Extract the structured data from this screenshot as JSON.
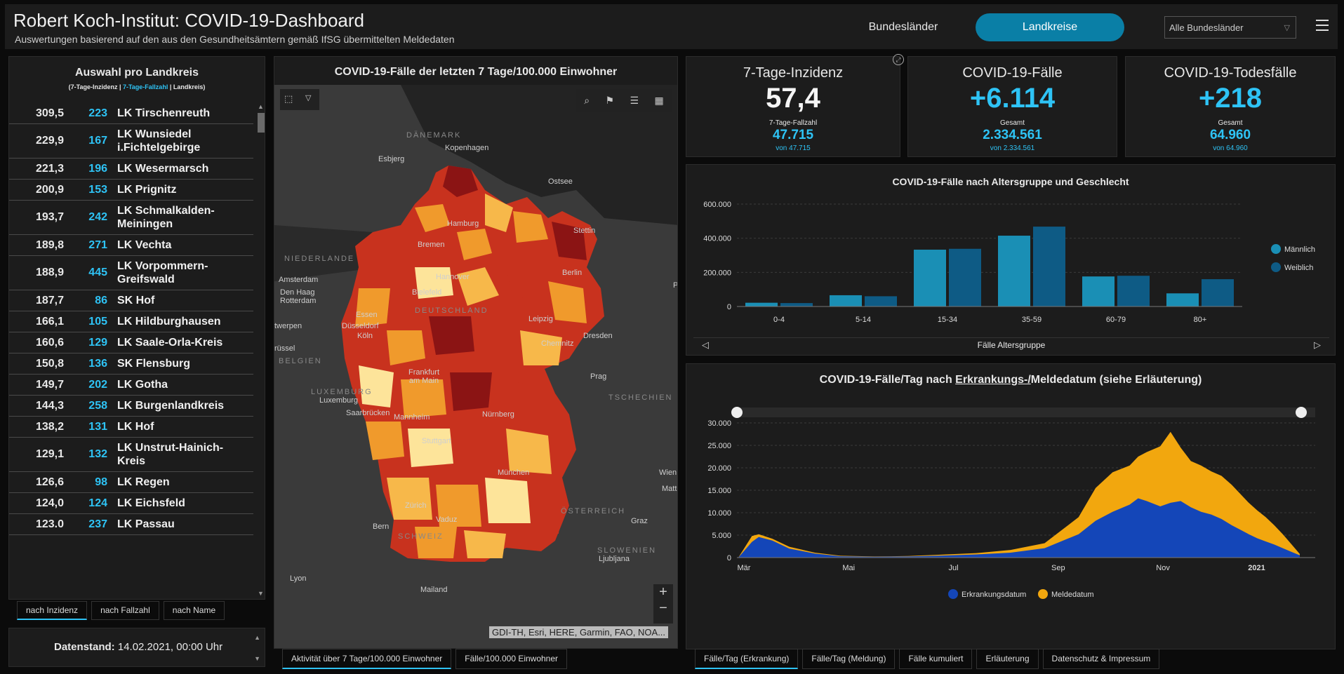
{
  "header": {
    "title": "Robert Koch-Institut: COVID-19-Dashboard",
    "subtitle": "Auswertungen basierend auf den aus den Gesundheitsämtern gemäß IfSG übermittelten Meldedaten",
    "tab_bundeslaender": "Bundesländer",
    "tab_landkreise": "Landkreise",
    "select_value": "Alle Bundesländer",
    "menu_icon": "hamburger-menu-icon"
  },
  "list": {
    "title": "Auswahl pro Landkreis",
    "legend_a": "(7-Tage-Inzidenz | ",
    "legend_b": "7-Tage-Fallzahl",
    "legend_c": " | Landkreis)",
    "rows": [
      {
        "inz": "309,5",
        "fz": "223",
        "name": "LK Tirschenreuth"
      },
      {
        "inz": "229,9",
        "fz": "167",
        "name": "LK Wunsiedel i.Fichtelgebirge"
      },
      {
        "inz": "221,3",
        "fz": "196",
        "name": "LK Wesermarsch"
      },
      {
        "inz": "200,9",
        "fz": "153",
        "name": "LK Prignitz"
      },
      {
        "inz": "193,7",
        "fz": "242",
        "name": "LK Schmalkalden-Meiningen"
      },
      {
        "inz": "189,8",
        "fz": "271",
        "name": "LK Vechta"
      },
      {
        "inz": "188,9",
        "fz": "445",
        "name": "LK Vorpommern-Greifswald"
      },
      {
        "inz": "187,7",
        "fz": "86",
        "name": "SK Hof"
      },
      {
        "inz": "166,1",
        "fz": "105",
        "name": "LK Hildburghausen"
      },
      {
        "inz": "160,6",
        "fz": "129",
        "name": "LK Saale-Orla-Kreis"
      },
      {
        "inz": "150,8",
        "fz": "136",
        "name": "SK Flensburg"
      },
      {
        "inz": "149,7",
        "fz": "202",
        "name": "LK Gotha"
      },
      {
        "inz": "144,3",
        "fz": "258",
        "name": "LK Burgenlandkreis"
      },
      {
        "inz": "138,2",
        "fz": "131",
        "name": "LK Hof"
      },
      {
        "inz": "129,1",
        "fz": "132",
        "name": "LK Unstrut-Hainich-Kreis"
      },
      {
        "inz": "126,6",
        "fz": "98",
        "name": "LK Regen"
      },
      {
        "inz": "124,0",
        "fz": "124",
        "name": "LK Eichsfeld"
      },
      {
        "inz": "123.0",
        "fz": "237",
        "name": "LK Passau"
      }
    ],
    "sort_tabs": [
      "nach Inzidenz",
      "nach Fallzahl",
      "nach Name"
    ],
    "date_label": "Datenstand:",
    "date_value": " 14.02.2021, 00:00 Uhr"
  },
  "map": {
    "title": "COVID-19-Fälle der letzten 7 Tage/100.000 Einwohner",
    "attribution": "GDI-TH, Esri, HERE, Garmin, FAO, NOA...",
    "zoom_in": "+",
    "zoom_out": "−",
    "labels": [
      "DÄNEMARK",
      "Kopenhagen",
      "Esbjerg",
      "Ostsee",
      "NIEDERLANDE",
      "Amsterdam",
      "Den Haag",
      "Rotterdam",
      "Hamburg",
      "Bremen",
      "Stettin",
      "Hannover",
      "Berlin",
      "Bielefeld",
      "Essen",
      "Düsseldorf",
      "DEUTSCHLAND",
      "Leipzig",
      "twerpen",
      "Köln",
      "Dresden",
      "rüssel",
      "Chemnitz",
      "BELGIEN",
      "Frankfurt am Main",
      "Prag",
      "LUXEMBURG",
      "Luxemburg",
      "TSCHECHIEN",
      "Saarbrücken",
      "Mannheim",
      "Nürnberg",
      "Stuttgart",
      "München",
      "Wien",
      "Mattersbur",
      "Zürich",
      "ÖSTERREICH",
      "Vaduz",
      "Graz",
      "Bern",
      "SCHWEIZ",
      "SLOWENIEN",
      "Ljubljana",
      "Lyon",
      "Mailand",
      "P"
    ],
    "tabs": [
      "Aktivität über 7 Tage/100.000 Einwohner",
      "Fälle/100.000 Einwohner"
    ],
    "colors": {
      "dark": "#8b1414",
      "red": "#c8321e",
      "orange": "#f09a2c",
      "lightorange": "#f7b84a",
      "pale": "#fde49a"
    }
  },
  "kpis": [
    {
      "label": "7-Tage-Inzidenz",
      "big": "57,4",
      "sub": "7-Tage-Fallzahl",
      "mid": "47.715",
      "small": "von 47.715"
    },
    {
      "label": "COVID-19-Fälle",
      "big": "+6.114",
      "sub": "Gesamt",
      "mid": "2.334.561",
      "small": "von 2.334.561"
    },
    {
      "label": "COVID-19-Todesfälle",
      "big": "+218",
      "sub": "Gesamt",
      "mid": "64.960",
      "small": "von 64.960"
    }
  ],
  "age_chart": {
    "title": "COVID-19-Fälle nach Altersgruppe und Geschlecht",
    "xlabel": "Fälle Altersgruppe",
    "chart_data": {
      "type": "bar",
      "categories": [
        "0-4",
        "5-14",
        "15-34",
        "35-59",
        "60-79",
        "80+"
      ],
      "series": [
        {
          "name": "Männlich",
          "values": [
            22000,
            66000,
            333000,
            415000,
            176000,
            77000
          ],
          "color": "#1a8fb5"
        },
        {
          "name": "Weiblich",
          "values": [
            20000,
            60000,
            338000,
            468000,
            180000,
            160000
          ],
          "color": "#0e5b85"
        }
      ],
      "yticks": [
        "0",
        "200.000",
        "400.000",
        "600.000"
      ],
      "ylim": [
        0,
        600000
      ]
    }
  },
  "daily_chart": {
    "title_a": "COVID-19-Fälle/Tag nach ",
    "title_b": "Erkrankungs-/",
    "title_c": "Meldedatum (siehe Erläuterung)",
    "chart_data": {
      "type": "area",
      "yticks": [
        "0",
        "5.000",
        "10.000",
        "15.000",
        "20.000",
        "25.000",
        "30.000"
      ],
      "ylim": [
        0,
        30000
      ],
      "xticks": [
        "Mär",
        "Mai",
        "Jul",
        "Sep",
        "Nov",
        "2021"
      ],
      "series": [
        {
          "name": "Erkrankungsdatum",
          "color": "#1446b8",
          "x": [
            0,
            8,
            12,
            20,
            30,
            45,
            60,
            80,
            100,
            120,
            140,
            160,
            180,
            200,
            210,
            220,
            230,
            235,
            240,
            248,
            254,
            260,
            266,
            272,
            278,
            284,
            290,
            295,
            300,
            305,
            310,
            315,
            320,
            325,
            330
          ],
          "values": [
            0,
            3500,
            4600,
            3800,
            2000,
            900,
            300,
            200,
            250,
            450,
            700,
            1100,
            2100,
            5200,
            8200,
            10200,
            11800,
            13200,
            12600,
            11400,
            12200,
            12600,
            11200,
            10200,
            9600,
            8600,
            7200,
            6200,
            5200,
            4300,
            3600,
            2900,
            2100,
            1300,
            500
          ]
        },
        {
          "name": "Meldedatum",
          "color": "#f2a70e",
          "x": [
            0,
            8,
            12,
            20,
            30,
            45,
            60,
            80,
            100,
            120,
            140,
            160,
            180,
            200,
            210,
            220,
            230,
            235,
            240,
            248,
            254,
            260,
            266,
            272,
            278,
            284,
            290,
            295,
            300,
            305,
            310,
            315,
            320,
            325,
            330
          ],
          "values": [
            0,
            4800,
            5200,
            4200,
            2400,
            1100,
            400,
            250,
            350,
            650,
            1000,
            1700,
            3200,
            9000,
            15500,
            19000,
            20500,
            22500,
            23500,
            24800,
            28000,
            24500,
            21500,
            20500,
            19200,
            18200,
            16200,
            14200,
            12200,
            10500,
            9000,
            7200,
            5200,
            3000,
            800
          ]
        }
      ]
    },
    "legend": [
      "Erkrankungsdatum",
      "Meldedatum"
    ]
  },
  "bottom_tabs": [
    "Fälle/Tag (Erkrankung)",
    "Fälle/Tag (Meldung)",
    "Fälle kumuliert",
    "Erläuterung",
    "Datenschutz & Impressum"
  ]
}
